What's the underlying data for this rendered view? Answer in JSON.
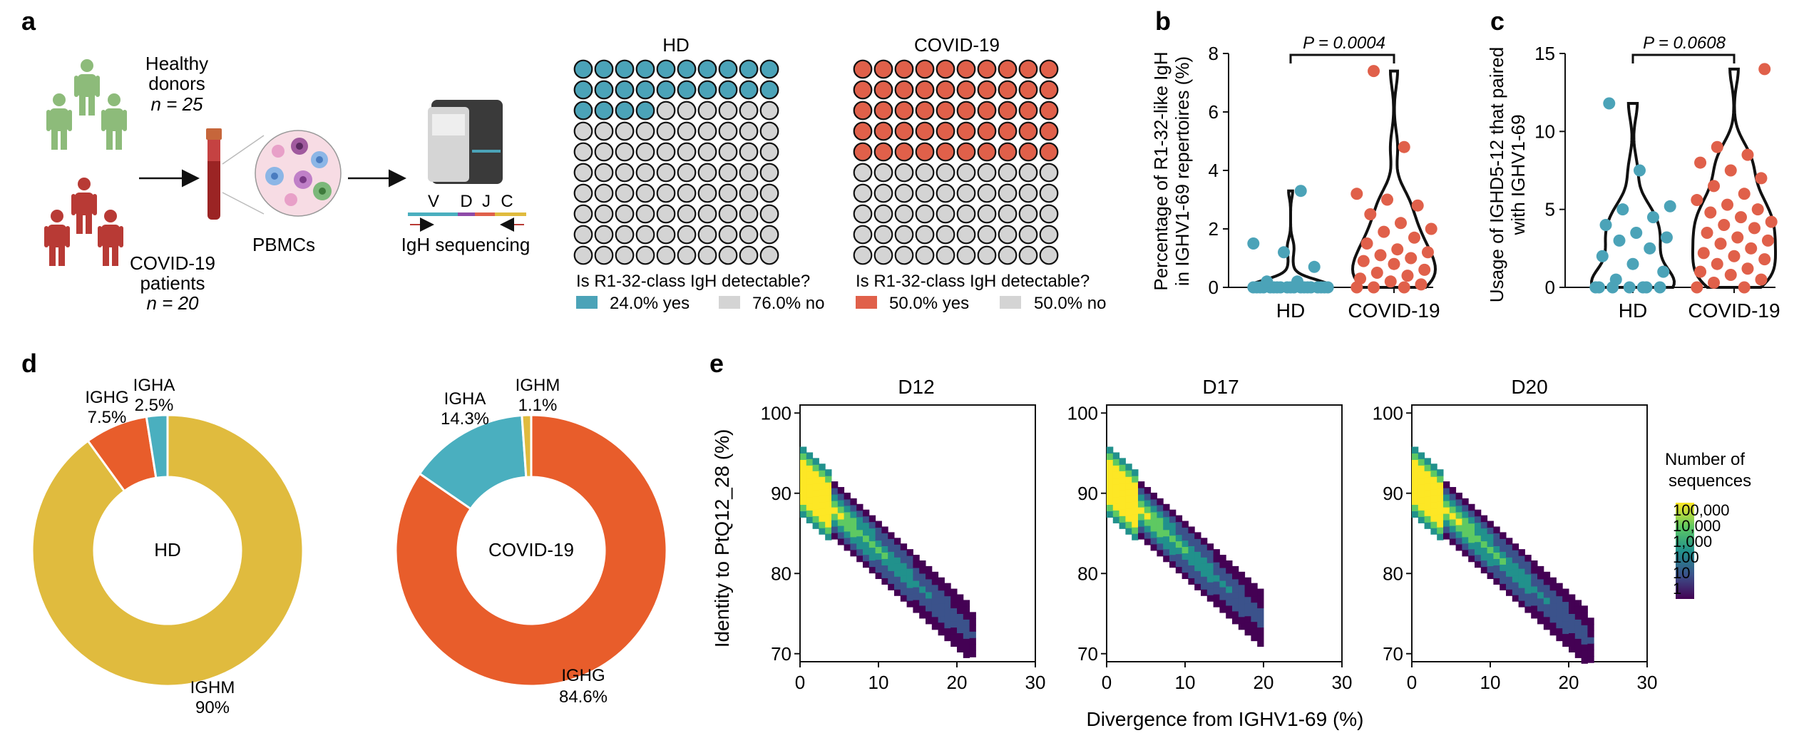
{
  "colors": {
    "hd_blue": "#4ba3b8",
    "covid_red": "#e0604a",
    "grey": "#d4d4d4",
    "healthy_green": "#8dbb7a",
    "patient_red": "#b83a35",
    "ighm_yellow": "#e0bb3e",
    "ighg_orange": "#e85d2b",
    "igha_teal": "#4aafbf"
  },
  "panels": {
    "a": "a",
    "b": "b",
    "c": "c",
    "d": "d",
    "e": "e"
  },
  "panel_a": {
    "healthy_label_1": "Healthy",
    "healthy_label_2": "donors",
    "healthy_n": "n = 25",
    "covid_label_1": "COVID-19",
    "covid_label_2": "patients",
    "covid_n": "n = 20",
    "pbmcs": "PBMCs",
    "seq_label": "IgH sequencing",
    "gene_v": "V",
    "gene_d": "D",
    "gene_j": "J",
    "gene_c": "C",
    "waffle_hd_title": "HD",
    "waffle_covid_title": "COVID-19",
    "waffle_question_hd": "Is R1-32-class IgH detectable?",
    "waffle_question_covid": "Is R1-32-class IgH detectable?",
    "hd_yes_label": "24.0% yes",
    "hd_no_label": "76.0% no",
    "covid_yes_label": "50.0% yes",
    "covid_no_label": "50.0% no"
  },
  "chart_data": [
    {
      "id": "a-waffle",
      "type": "waffle",
      "series": [
        {
          "name": "HD",
          "yes_percent": 24.0,
          "no_percent": 76.0,
          "grid": [
            10,
            10
          ]
        },
        {
          "name": "COVID-19",
          "yes_percent": 50.0,
          "no_percent": 50.0,
          "grid": [
            10,
            10
          ]
        }
      ]
    },
    {
      "id": "b",
      "type": "violin-scatter",
      "ylabel_1": "Percentage of R1-32-like IgH",
      "ylabel_2": "in IGHV1-69 repertoires (%)",
      "categories": [
        "HD",
        "COVID-19"
      ],
      "ylim": [
        0,
        8
      ],
      "yticks": [
        "0",
        "2",
        "4",
        "6",
        "8"
      ],
      "pvalue": "P = 0.0004",
      "series": [
        {
          "name": "HD",
          "values": [
            0,
            0,
            0,
            0,
            0,
            0,
            0,
            0,
            0,
            0,
            0,
            0,
            0,
            0,
            0,
            0,
            0,
            0,
            0,
            0.2,
            0.2,
            0.7,
            1.2,
            1.5,
            3.3
          ]
        },
        {
          "name": "COVID-19",
          "values": [
            0,
            0,
            0,
            0.1,
            0.2,
            0.3,
            0.4,
            0.5,
            0.6,
            0.8,
            0.9,
            1.0,
            1.1,
            1.2,
            1.3,
            1.5,
            1.7,
            1.9,
            2.0,
            2.2,
            2.5,
            2.8,
            3.0,
            3.2,
            4.8,
            7.4
          ]
        }
      ]
    },
    {
      "id": "c",
      "type": "violin-scatter",
      "ylabel_1": "Usage of IGHD5-12 that paired",
      "ylabel_2": "with IGHV1-69",
      "categories": [
        "HD",
        "COVID-19"
      ],
      "ylim": [
        0,
        15
      ],
      "yticks": [
        "0",
        "5",
        "10",
        "15"
      ],
      "pvalue": "P = 0.0608",
      "series": [
        {
          "name": "HD",
          "values": [
            0,
            0,
            0,
            0,
            0,
            0,
            0,
            0.5,
            1,
            1.5,
            2,
            2.5,
            3,
            3.2,
            3.5,
            4,
            4.5,
            5,
            5.2,
            7.5,
            11.8
          ]
        },
        {
          "name": "COVID-19",
          "values": [
            0,
            0,
            0.3,
            0.5,
            0.8,
            1,
            1.2,
            1.5,
            1.8,
            2,
            2.2,
            2.5,
            2.8,
            3,
            3.2,
            3.5,
            3.8,
            4,
            4.2,
            4.5,
            4.8,
            5,
            5.3,
            5.6,
            6,
            6.5,
            7,
            7.5,
            8,
            8.5,
            9,
            14
          ]
        }
      ]
    },
    {
      "id": "d-hd",
      "type": "pie",
      "center_label": "HD",
      "slices": [
        {
          "name": "IGHM",
          "value": 90,
          "label": "IGHM",
          "pct": "90%"
        },
        {
          "name": "IGHG",
          "value": 7.5,
          "label": "IGHG",
          "pct": "7.5%"
        },
        {
          "name": "IGHA",
          "value": 2.5,
          "label": "IGHA",
          "pct": "2.5%"
        }
      ]
    },
    {
      "id": "d-covid",
      "type": "pie",
      "center_label": "COVID-19",
      "slices": [
        {
          "name": "IGHG",
          "value": 84.6,
          "label": "IGHG",
          "pct": "84.6%"
        },
        {
          "name": "IGHA",
          "value": 14.3,
          "label": "IGHA",
          "pct": "14.3%"
        },
        {
          "name": "IGHM",
          "value": 1.1,
          "label": "IGHM",
          "pct": "1.1%"
        }
      ]
    },
    {
      "id": "e",
      "type": "heatmap",
      "panels": [
        "D12",
        "D17",
        "D20"
      ],
      "xlabel": "Divergence from IGHV1-69 (%)",
      "ylabel": "Identity to PtQ12_28 (%)",
      "xlim": [
        0,
        30
      ],
      "ylim": [
        69,
        101
      ],
      "xticks": [
        "0",
        "10",
        "20",
        "30"
      ],
      "yticks": [
        "70",
        "80",
        "90",
        "100"
      ],
      "legend_title_1": "Number of",
      "legend_title_2": "sequences",
      "legend_levels": [
        "100,000",
        "10,000",
        "1,000",
        "100",
        "10",
        "1"
      ]
    }
  ]
}
